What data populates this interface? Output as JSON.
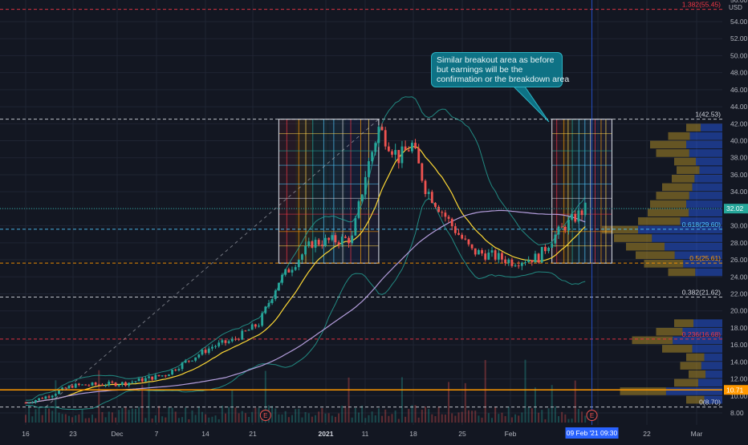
{
  "price_axis": {
    "currency": "USD",
    "ticks": [
      "54.00",
      "52.00",
      "50.00",
      "48.00",
      "46.00",
      "44.00",
      "42.00",
      "40.00",
      "38.00",
      "36.00",
      "34.00",
      "32.00",
      "30.00",
      "28.00",
      "26.00",
      "24.00",
      "22.00",
      "20.00",
      "18.00",
      "16.00",
      "14.00",
      "12.00",
      "10.00",
      "8.00"
    ],
    "current_price": "32.02",
    "orange_level": "10.71",
    "top_cut_label": "56.00"
  },
  "time_axis": {
    "ticks": [
      "16",
      "23",
      "Dec",
      "7",
      "14",
      "21",
      "2021",
      "11",
      "18",
      "25",
      "Feb",
      "12",
      "22",
      "Mar"
    ],
    "cursor_label": "09 Feb '21   09:30"
  },
  "annotation": {
    "lines": [
      "Similar breakout area as before",
      "but earnings will be the",
      "confirmation or the breakdown area"
    ]
  },
  "earnings_markers": [
    "E",
    "E"
  ],
  "colors": {
    "background": "#131722",
    "up": "#26a69a",
    "down": "#ef5350",
    "fib_white": "#d1d4dc",
    "fib_red": "#f23645",
    "fib_yellow": "#ffd54f",
    "fib_blue": "#4fc3f7",
    "fib_orange": "#ff9800",
    "ma_yellow": "#fdd835",
    "ma_purple": "#b39ddb",
    "band": "#26a69a",
    "note_bg": "#0e7285",
    "volume_profile_blue": "#2962ff",
    "volume_profile_gold": "#c9a227",
    "cursor": "#2962ff"
  },
  "chart_data": {
    "type": "candlestick",
    "x": [
      "16",
      "23",
      "Dec",
      "7",
      "14",
      "21",
      "2021",
      "11",
      "18",
      "25",
      "Feb",
      "12",
      "22",
      "Mar"
    ],
    "ylim": [
      8,
      56
    ],
    "grid": true,
    "fib_levels": [
      {
        "label": "1.382(55.45)",
        "ratio": 1.382,
        "value": 55.45
      },
      {
        "label": "1(42.53)",
        "ratio": 1,
        "value": 42.53
      },
      {
        "label": "0.618(29.60)",
        "ratio": 0.618,
        "value": 29.6
      },
      {
        "label": "0.5(25.61)",
        "ratio": 0.5,
        "value": 25.61
      },
      {
        "label": "0.382(21.62)",
        "ratio": 0.382,
        "value": 21.62
      },
      {
        "label": "0.236(16.68)",
        "ratio": 0.236,
        "value": 16.68
      },
      {
        "label": "0(8.70)",
        "ratio": 0,
        "value": 8.7
      }
    ],
    "boxes": [
      {
        "from": "Dec 24",
        "to": "Jan 8",
        "low": 25.61,
        "high": 42.53
      },
      {
        "from": "Feb 3",
        "to": "Feb 12",
        "low": 25.61,
        "high": 42.53
      }
    ],
    "price_path": [
      {
        "x": "Nov 16",
        "y": 9.2
      },
      {
        "x": "Nov 19",
        "y": 9.9
      },
      {
        "x": "Nov 23",
        "y": 11.2
      },
      {
        "x": "Dec 1",
        "y": 11.5
      },
      {
        "x": "Dec 7",
        "y": 12.5
      },
      {
        "x": "Dec 10",
        "y": 14.0
      },
      {
        "x": "Dec 14",
        "y": 15.8
      },
      {
        "x": "Dec 17",
        "y": 16.5
      },
      {
        "x": "Dec 21",
        "y": 18.5
      },
      {
        "x": "Dec 24",
        "y": 23.5
      },
      {
        "x": "Dec 29",
        "y": 28.0
      },
      {
        "x": "Jan 4",
        "y": 28.5
      },
      {
        "x": "Jan 6",
        "y": 36.0
      },
      {
        "x": "Jan 8",
        "y": 41.5
      },
      {
        "x": "Jan 11",
        "y": 38.0
      },
      {
        "x": "Jan 13",
        "y": 39.5
      },
      {
        "x": "Jan 15",
        "y": 34.5
      },
      {
        "x": "Jan 19",
        "y": 30.0
      },
      {
        "x": "Jan 22",
        "y": 27.0
      },
      {
        "x": "Jan 25",
        "y": 26.5
      },
      {
        "x": "Jan 28",
        "y": 25.8
      },
      {
        "x": "Feb 1",
        "y": 26.3
      },
      {
        "x": "Feb 3",
        "y": 28.5
      },
      {
        "x": "Feb 5",
        "y": 30.0
      },
      {
        "x": "Feb 8",
        "y": 32.0
      }
    ]
  }
}
